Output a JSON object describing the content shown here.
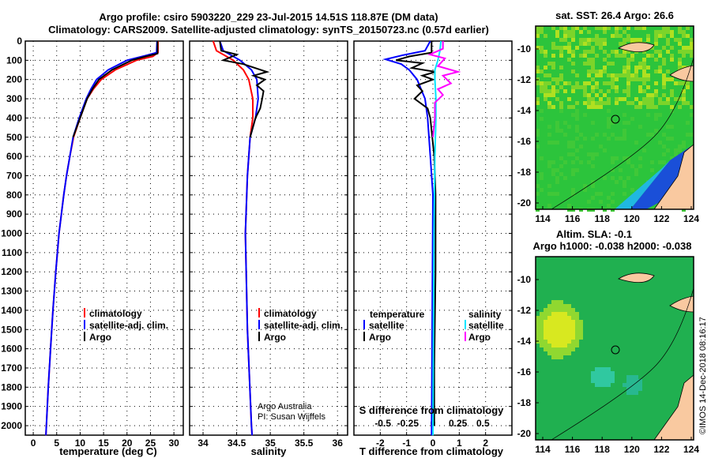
{
  "title": {
    "line1": "Argo profile: csiro 5903220_229 23-Jul-2015 14.51S 118.87E (DM data)",
    "line2": "Climatology: CARS2009. Satellite-adjusted climatology: synTS_20150723.nc (0.57d earlier)"
  },
  "colors": {
    "climatology": "#ff0000",
    "satellite": "#0000ff",
    "argo": "#000000",
    "sal_satellite": "#00e5ff",
    "sal_argo": "#ff00ff",
    "land": "#f9c9a0",
    "ocean": "#1fb84a"
  },
  "chart_data": [
    {
      "type": "line",
      "name": "temperature",
      "xlabel": "temperature (deg C)",
      "ylabel": "",
      "xlim": [
        -1.7,
        32
      ],
      "ylim": [
        2050,
        0
      ],
      "xticks": [
        0,
        5,
        10,
        15,
        20,
        25,
        30
      ],
      "yticks": [
        0,
        100,
        200,
        300,
        400,
        500,
        600,
        700,
        800,
        900,
        1000,
        1100,
        1200,
        1300,
        1400,
        1500,
        1600,
        1700,
        1800,
        1900,
        2000
      ],
      "legend": [
        "climatology",
        "satellite-adj. clim.",
        "Argo"
      ],
      "series": [
        {
          "name": "climatology",
          "color": "#ff0000",
          "points": [
            [
              0,
              26.6
            ],
            [
              60,
              26.6
            ],
            [
              80,
              25.5
            ],
            [
              100,
              22
            ],
            [
              150,
              17.5
            ],
            [
              200,
              14.5
            ],
            [
              250,
              12.8
            ],
            [
              300,
              11.5
            ],
            [
              400,
              10
            ],
            [
              500,
              8.6
            ],
            [
              600,
              7.8
            ],
            [
              700,
              7.1
            ],
            [
              800,
              6.5
            ],
            [
              900,
              6
            ],
            [
              1000,
              5.5
            ],
            [
              1200,
              4.8
            ],
            [
              1400,
              4.2
            ],
            [
              1600,
              3.7
            ],
            [
              1800,
              3.2
            ],
            [
              2000,
              2.8
            ],
            [
              2050,
              2.7
            ]
          ]
        },
        {
          "name": "satellite-adj. clim.",
          "color": "#0000ff",
          "points": [
            [
              0,
              26.4
            ],
            [
              60,
              26.3
            ],
            [
              75,
              24
            ],
            [
              100,
              20
            ],
            [
              150,
              16
            ],
            [
              200,
              13.5
            ],
            [
              250,
              12.3
            ],
            [
              300,
              11.3
            ],
            [
              400,
              9.8
            ],
            [
              500,
              8.5
            ],
            [
              600,
              7.8
            ],
            [
              700,
              7.1
            ],
            [
              800,
              6.5
            ],
            [
              900,
              6
            ],
            [
              1000,
              5.5
            ],
            [
              1200,
              4.8
            ],
            [
              1400,
              4.2
            ],
            [
              1600,
              3.7
            ],
            [
              1800,
              3.2
            ],
            [
              2000,
              2.8
            ],
            [
              2050,
              2.7
            ]
          ]
        },
        {
          "name": "Argo",
          "color": "#000000",
          "points": [
            [
              0,
              26.5
            ],
            [
              65,
              26.5
            ],
            [
              80,
              24
            ],
            [
              100,
              21
            ],
            [
              150,
              16.8
            ],
            [
              200,
              14
            ],
            [
              250,
              12.6
            ],
            [
              300,
              11.5
            ],
            [
              400,
              10
            ],
            [
              500,
              8.5
            ]
          ]
        }
      ]
    },
    {
      "type": "line",
      "name": "salinity",
      "xlabel": "salinity",
      "ylabel": "",
      "xlim": [
        33.8,
        36.15
      ],
      "ylim": [
        2050,
        0
      ],
      "xticks": [
        34,
        34.5,
        35,
        35.5,
        36
      ],
      "legend": [
        "climatology",
        "satellite-adj. clim.",
        "Argo"
      ],
      "series": [
        {
          "name": "climatology",
          "color": "#ff0000",
          "points": [
            [
              0,
              34.15
            ],
            [
              50,
              34.2
            ],
            [
              100,
              34.45
            ],
            [
              150,
              34.6
            ],
            [
              200,
              34.68
            ],
            [
              300,
              34.74
            ],
            [
              400,
              34.74
            ],
            [
              500,
              34.7
            ],
            [
              700,
              34.66
            ],
            [
              1000,
              34.63
            ],
            [
              1500,
              34.66
            ],
            [
              2000,
              34.72
            ],
            [
              2050,
              34.73
            ]
          ]
        },
        {
          "name": "satellite-adj. clim.",
          "color": "#0000ff",
          "points": [
            [
              0,
              34.25
            ],
            [
              50,
              34.3
            ],
            [
              100,
              34.55
            ],
            [
              150,
              34.72
            ],
            [
              200,
              34.8
            ],
            [
              300,
              34.82
            ],
            [
              400,
              34.78
            ],
            [
              500,
              34.7
            ],
            [
              700,
              34.66
            ],
            [
              1000,
              34.63
            ],
            [
              1500,
              34.66
            ],
            [
              2000,
              34.72
            ],
            [
              2050,
              34.73
            ]
          ]
        },
        {
          "name": "Argo",
          "color": "#000000",
          "points": [
            [
              0,
              34.25
            ],
            [
              50,
              34.27
            ],
            [
              70,
              34.5
            ],
            [
              100,
              34.3
            ],
            [
              120,
              34.6
            ],
            [
              160,
              34.95
            ],
            [
              180,
              34.75
            ],
            [
              200,
              34.92
            ],
            [
              230,
              34.8
            ],
            [
              260,
              34.9
            ],
            [
              300,
              34.88
            ],
            [
              350,
              34.85
            ],
            [
              400,
              34.78
            ],
            [
              450,
              34.74
            ],
            [
              500,
              34.7
            ]
          ]
        }
      ],
      "annotation": [
        "Argo Australia",
        "PI: Susan Wijffels"
      ]
    },
    {
      "type": "line",
      "name": "difference",
      "xlabel": "T difference from climatology",
      "x2label": "S difference from climatology",
      "xlim": [
        -3,
        3
      ],
      "ylim": [
        2050,
        0
      ],
      "xticks": [
        -2,
        -1,
        0,
        1,
        2
      ],
      "x2ticks": [
        "-0.5",
        "-0.25",
        "0",
        "0.25",
        "0.5"
      ],
      "legend_t": {
        "title": "temperature",
        "items": [
          "satellite",
          "Argo"
        ]
      },
      "legend_s": {
        "title": "salinity",
        "items": [
          "satellite",
          "Argo"
        ]
      },
      "series": [
        {
          "name": "T satellite",
          "color": "#0000ff",
          "points": [
            [
              0,
              -0.1
            ],
            [
              50,
              -0.3
            ],
            [
              75,
              -1.2
            ],
            [
              95,
              -1.8
            ],
            [
              120,
              -1.2
            ],
            [
              150,
              -0.9
            ],
            [
              200,
              -0.6
            ],
            [
              300,
              -0.3
            ],
            [
              400,
              -0.2
            ],
            [
              600,
              -0.1
            ],
            [
              800,
              0
            ],
            [
              2050,
              -0.05
            ]
          ]
        },
        {
          "name": "T Argo",
          "color": "#000000",
          "points": [
            [
              0,
              -0.05
            ],
            [
              60,
              -0.05
            ],
            [
              80,
              -0.9
            ],
            [
              100,
              -1.4
            ],
            [
              115,
              -0.4
            ],
            [
              140,
              -0.8
            ],
            [
              160,
              0.1
            ],
            [
              180,
              -0.4
            ],
            [
              200,
              0
            ],
            [
              230,
              -0.6
            ],
            [
              260,
              -0.4
            ],
            [
              300,
              -0.7
            ],
            [
              350,
              -0.2
            ],
            [
              400,
              -0.1
            ],
            [
              600,
              0.05
            ],
            [
              800,
              0.1
            ],
            [
              1200,
              0.1
            ],
            [
              1700,
              0.05
            ],
            [
              2000,
              0.05
            ]
          ]
        },
        {
          "name": "S satellite",
          "color": "#00e5ff",
          "points": [
            [
              0,
              0.08
            ],
            [
              50,
              0.07
            ],
            [
              100,
              0.05
            ],
            [
              150,
              0.02
            ],
            [
              200,
              0.02
            ],
            [
              300,
              0.03
            ],
            [
              400,
              0.03
            ],
            [
              600,
              0.02
            ],
            [
              1000,
              0.01
            ],
            [
              2050,
              0
            ]
          ]
        },
        {
          "name": "S Argo",
          "color": "#ff00ff",
          "points": [
            [
              0,
              0.1
            ],
            [
              40,
              0.1
            ],
            [
              70,
              -0.03
            ],
            [
              90,
              0.12
            ],
            [
              130,
              0.05
            ],
            [
              160,
              0.25
            ],
            [
              180,
              0.1
            ],
            [
              220,
              0.18
            ],
            [
              250,
              0.05
            ],
            [
              280,
              0.1
            ],
            [
              320,
              0.02
            ],
            [
              400,
              0.02
            ],
            [
              500,
              0
            ]
          ]
        }
      ]
    }
  ],
  "maps": [
    {
      "title": "sat. SST: 26.4 Argo: 26.6",
      "lon_ticks": [
        "114",
        "116",
        "118",
        "120",
        "122",
        "124"
      ],
      "lat_ticks": [
        "-10",
        "-12",
        "-14",
        "-16",
        "-18",
        "-20"
      ]
    },
    {
      "title": "Altim. SLA: -0.1",
      "subtitle": "Argo h1000: -0.038 h2000: -0.038",
      "lon_ticks": [
        "114",
        "116",
        "118",
        "120",
        "122",
        "124"
      ],
      "lat_ticks": [
        "-10",
        "-12",
        "-14",
        "-16",
        "-18",
        "-20"
      ]
    }
  ],
  "credit": "©IMOS 14-Dec-2018 08:16:17"
}
